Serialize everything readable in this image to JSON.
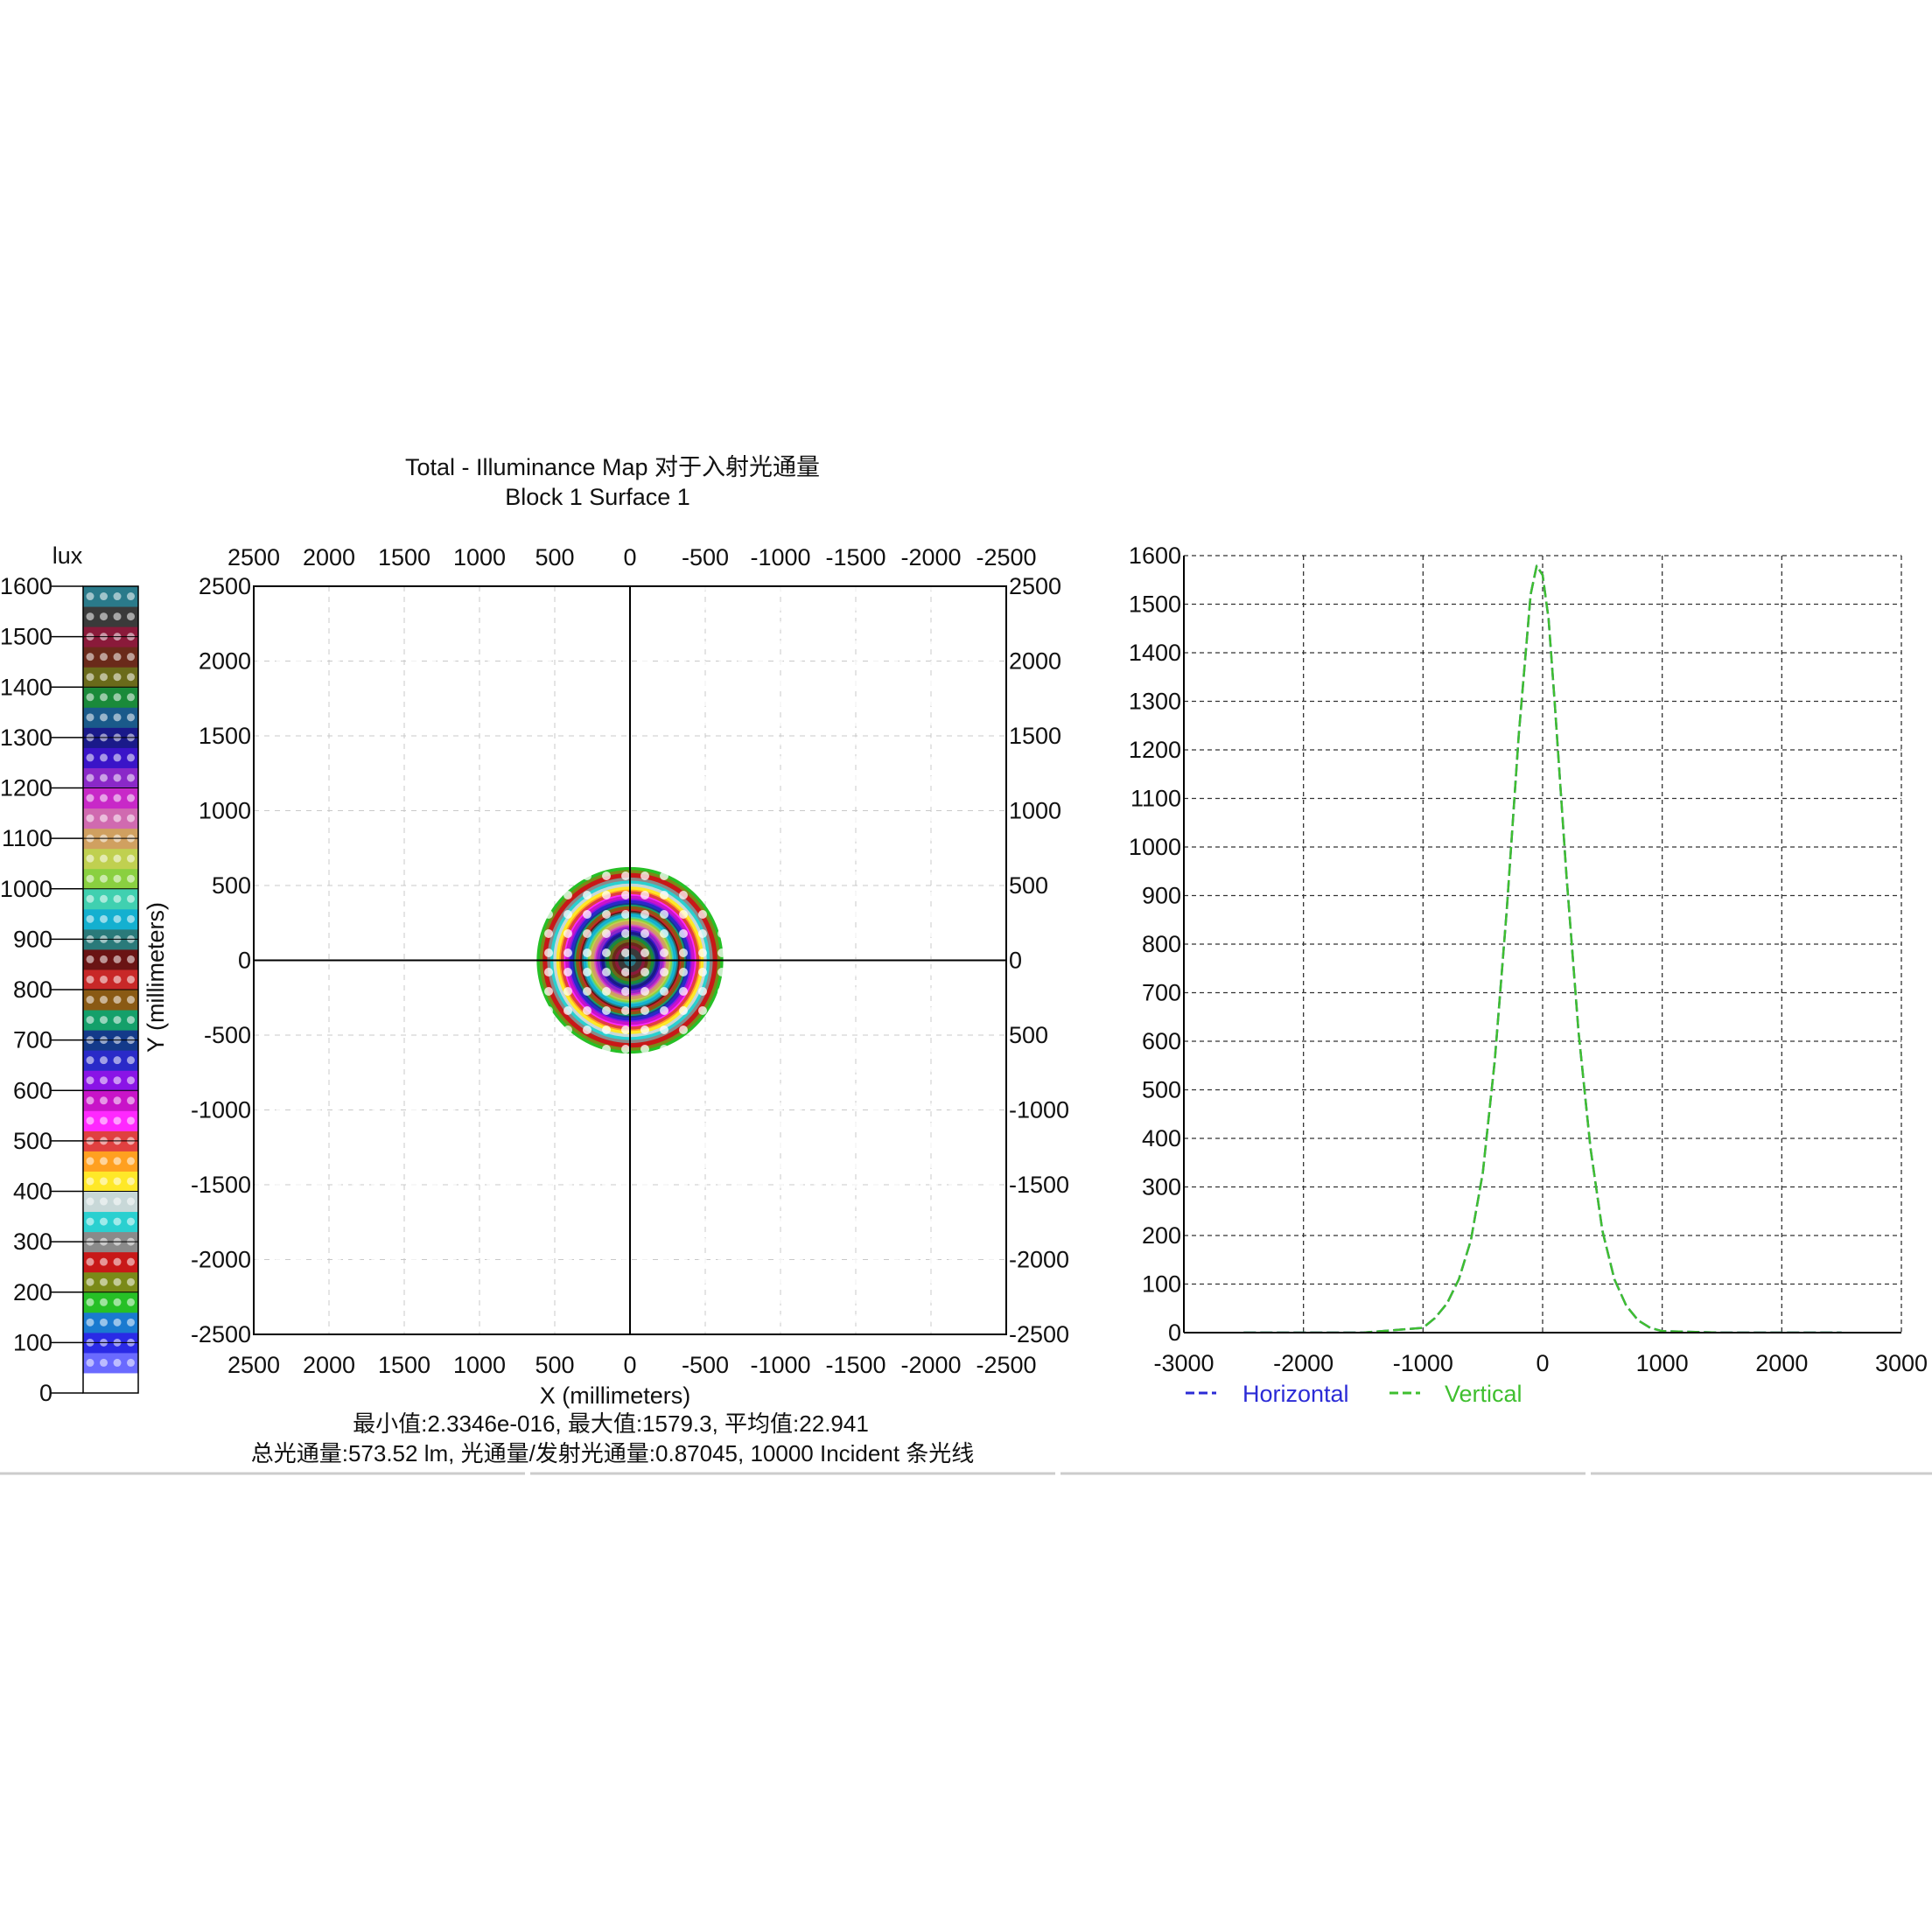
{
  "colors": {
    "background": "#ffffff",
    "axis": "#000000",
    "grid": "#c8c8c8",
    "grid_right": "#333333",
    "horizontal": "#2b2bd6",
    "vertical": "#3fbf2f",
    "separator": "#cccccc"
  },
  "colorbar": {
    "unit": "lux",
    "ticks": [
      "1600",
      "1500",
      "1400",
      "1300",
      "1200",
      "1100",
      "1000",
      "900",
      "800",
      "700",
      "600",
      "500",
      "400",
      "300",
      "200",
      "100",
      "0"
    ],
    "band_colors": [
      "#ffffff",
      "#6a6aff",
      "#2a2ae6",
      "#1a7ad0",
      "#26c026",
      "#7a8a18",
      "#c81818",
      "#8a8a8a",
      "#2ad0d0",
      "#c8d8d8",
      "#ffe828",
      "#ffa020",
      "#e04040",
      "#ff28ff",
      "#c814c8",
      "#8a14e6",
      "#2a2ac8",
      "#143a8a",
      "#14a06a",
      "#8a5a14",
      "#c82828",
      "#6a1414",
      "#2a7a7a",
      "#14b0d0",
      "#40d0b0",
      "#8ad040",
      "#c0d050",
      "#d0a060",
      "#d06ab0",
      "#c828c8",
      "#8a28c8",
      "#3a14c8",
      "#1a1a8a",
      "#1a5a8a",
      "#1a8a3a",
      "#6a6a1a",
      "#6a2a1a",
      "#8a1a3a",
      "#3a3a3a",
      "#2a7a8a"
    ]
  },
  "chart_data": [
    {
      "type": "heatmap",
      "title": "Total - Illuminance Map 对于入射光通量",
      "subtitle": "Block 1 Surface 1",
      "xlabel": "X (millimeters)",
      "ylabel": "Y (millimeters)",
      "xlim": [
        2500,
        -2500
      ],
      "ylim": [
        -2500,
        2500
      ],
      "x_ticks": [
        "2500",
        "2000",
        "1500",
        "1000",
        "500",
        "0",
        "-500",
        "-1000",
        "-1500",
        "-2000",
        "-2500"
      ],
      "y_ticks_left": [
        "2500",
        "2000",
        "1500",
        "1000",
        "500",
        "0",
        "-500",
        "-1000",
        "-1500",
        "-2000",
        "-2500"
      ],
      "y_ticks_right": [
        "2500",
        "2000",
        "1500",
        "1000",
        "500",
        "0",
        "500",
        "-1000",
        "-1500",
        "-2000",
        "-2500"
      ],
      "value_unit": "lux",
      "value_range": [
        0,
        1600
      ],
      "peak": 1579.3,
      "center": [
        0,
        0
      ],
      "falloff_sigma_mm": 300,
      "stats_line1": "最小值:2.3346e-016, 最大值:1579.3, 平均值:22.941",
      "stats_line2": "总光通量:573.52 lm, 光通量/发射光通量:0.87045, 10000 Incident 条光线"
    },
    {
      "type": "line",
      "xlim": [
        -3000,
        3000
      ],
      "ylim": [
        0,
        1600
      ],
      "x_ticks": [
        "-3000",
        "-2000",
        "-1000",
        "0",
        "1000",
        "2000",
        "3000"
      ],
      "y_ticks": [
        "1600",
        "1500",
        "1400",
        "1300",
        "1200",
        "1100",
        "1000",
        "900",
        "800",
        "700",
        "600",
        "500",
        "400",
        "300",
        "200",
        "100",
        "0"
      ],
      "series": [
        {
          "name": "Horizontal",
          "x": [
            -2500,
            -2000,
            -1500,
            -1000,
            -900,
            -800,
            -700,
            -600,
            -500,
            -400,
            -300,
            -200,
            -100,
            -50,
            0,
            50,
            100,
            200,
            300,
            400,
            500,
            600,
            700,
            800,
            900,
            1000,
            1500,
            2000,
            2500
          ],
          "values": [
            0,
            0,
            0,
            10,
            30,
            60,
            110,
            190,
            330,
            560,
            870,
            1230,
            1520,
            1579,
            1560,
            1470,
            1300,
            940,
            620,
            380,
            210,
            110,
            55,
            25,
            10,
            3,
            0,
            0,
            0
          ]
        },
        {
          "name": "Vertical",
          "x": [
            -2500,
            -2000,
            -1500,
            -1000,
            -900,
            -800,
            -700,
            -600,
            -500,
            -400,
            -300,
            -200,
            -100,
            -50,
            0,
            50,
            100,
            200,
            300,
            400,
            500,
            600,
            700,
            800,
            900,
            1000,
            1500,
            2000,
            2500
          ],
          "values": [
            0,
            0,
            0,
            10,
            30,
            60,
            110,
            190,
            330,
            560,
            870,
            1230,
            1520,
            1579,
            1560,
            1470,
            1300,
            940,
            620,
            380,
            210,
            110,
            55,
            25,
            10,
            3,
            0,
            0,
            0
          ]
        }
      ]
    }
  ]
}
